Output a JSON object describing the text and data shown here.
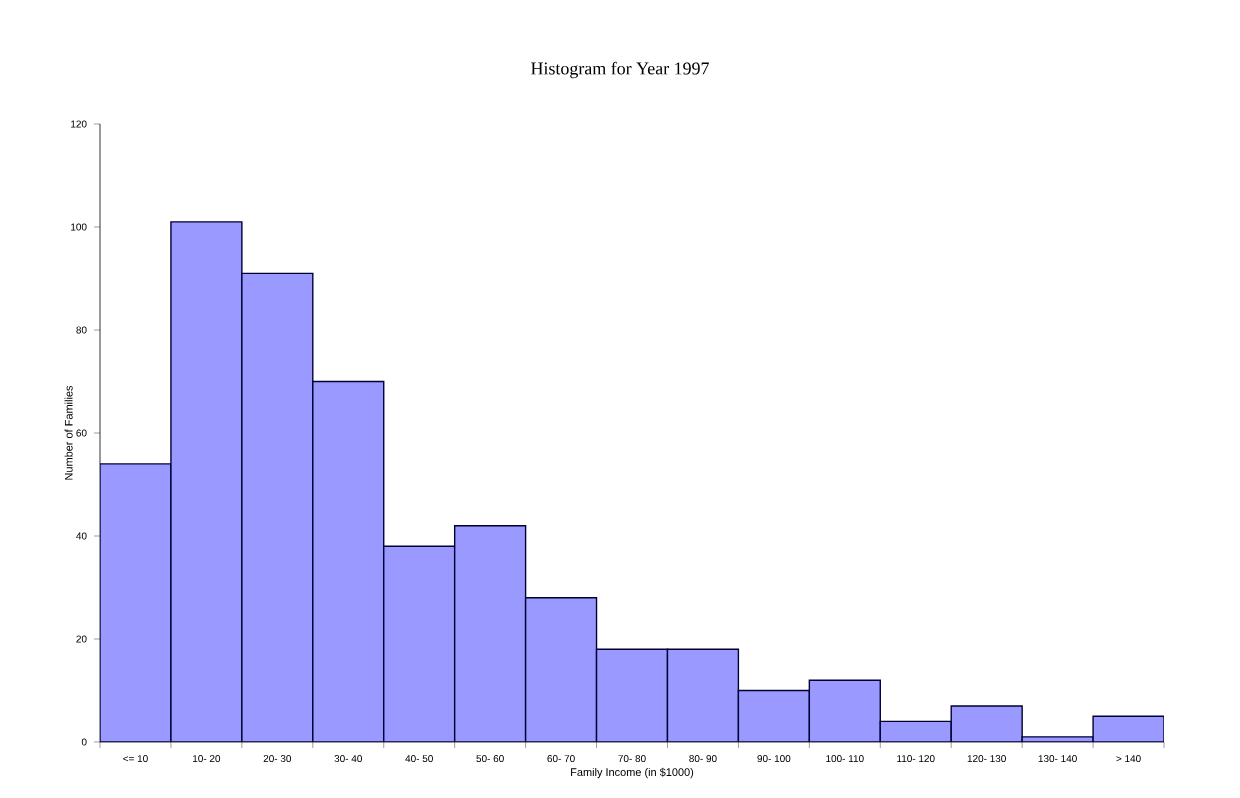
{
  "chart_data": {
    "type": "bar",
    "title": "Histogram for Year 1997",
    "xlabel": "Family Income (in $1000)",
    "ylabel": "Number of Families",
    "categories": [
      "<= 10",
      "10- 20",
      "20- 30",
      "30- 40",
      "40- 50",
      "50- 60",
      "60- 70",
      "70- 80",
      "80- 90",
      "90- 100",
      "100- 110",
      "110- 120",
      "120- 130",
      "130- 140",
      "> 140"
    ],
    "values": [
      54,
      101,
      91,
      70,
      38,
      42,
      28,
      18,
      18,
      10,
      12,
      4,
      7,
      1,
      5
    ],
    "color": "#9999ff",
    "ylim": [
      0,
      120
    ],
    "yticks": [
      0,
      20,
      40,
      60,
      80,
      100,
      120
    ]
  }
}
